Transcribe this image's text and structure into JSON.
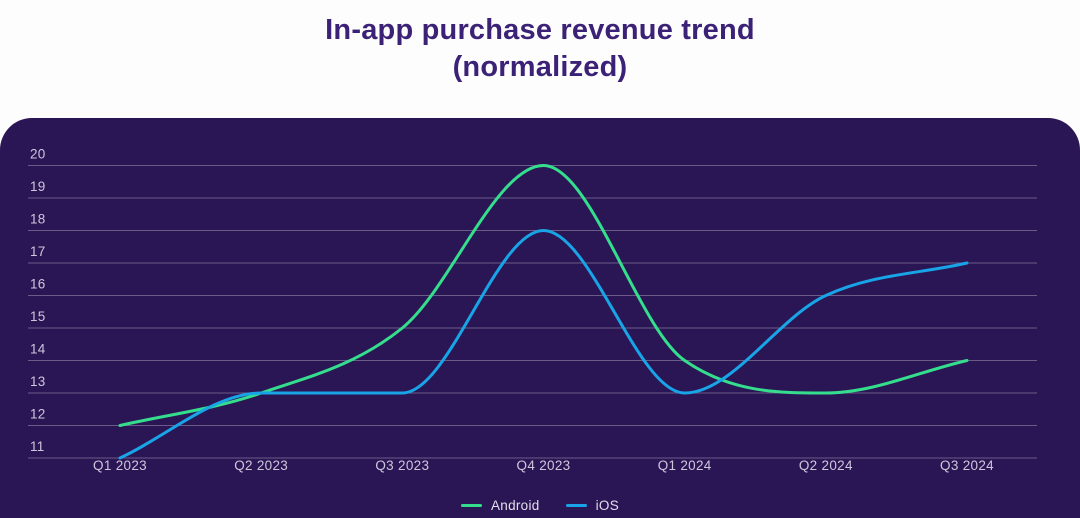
{
  "header": {
    "title_line1": "In-app purchase revenue trend",
    "title_line2": "(normalized)"
  },
  "chart_data": {
    "type": "line",
    "title": "In-app purchase revenue trend (normalized)",
    "categories": [
      "Q1 2023",
      "Q2 2023",
      "Q3 2023",
      "Q4 2023",
      "Q1 2024",
      "Q2 2024",
      "Q3 2024"
    ],
    "series": [
      {
        "name": "Android",
        "color": "#34DE8D",
        "values": [
          12,
          13,
          15,
          20,
          14,
          13,
          14
        ]
      },
      {
        "name": "iOS",
        "color": "#18A4E6",
        "values": [
          11,
          13,
          13,
          18,
          13,
          16,
          17
        ]
      }
    ],
    "xlabel": "",
    "ylabel": "",
    "ylim": [
      11,
      20
    ],
    "yticks": [
      11,
      12,
      13,
      14,
      15,
      16,
      17,
      18,
      19,
      20
    ],
    "grid": "horizontal",
    "legend_position": "bottom"
  },
  "colors": {
    "page_bg": "#FDFDFE",
    "card_bg": "#2A1654",
    "title_text": "#3C2276",
    "grid_line": "rgba(255,255,255,0.30)",
    "tick_label": "#CDC7DC",
    "legend_text": "#E2DEEC"
  }
}
